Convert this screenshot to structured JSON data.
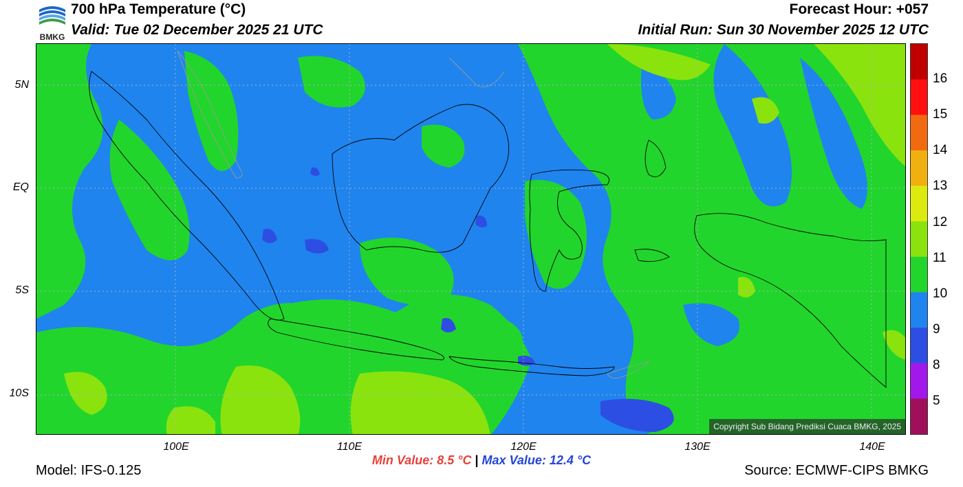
{
  "header": {
    "logo_text": "BMKG",
    "title": "700 hPa Temperature (°C)",
    "valid": "Valid: Tue 02 December 2025 21 UTC",
    "forecast_hour": "Forecast Hour: +057",
    "initial_run": "Initial Run: Sun 30 November 2025 12 UTC"
  },
  "map": {
    "copyright": "Copyright Sub Bidang Prediksi Cuaca BMKG, 2025",
    "lat_labels": [
      "5N",
      "EQ",
      "5S",
      "10S"
    ],
    "lon_labels": [
      "100E",
      "110E",
      "120E",
      "130E",
      "140E"
    ],
    "extent": {
      "lon_min": 92,
      "lon_max": 142,
      "lat_min": -12.0,
      "lat_max": 7.2
    },
    "field_colors": {
      "blue_9_10": "#1f84ee",
      "green_10_11": "#22d52c",
      "yellowgreen_11_12": "#8be30e",
      "darkblue_8_9": "#2d4ee2",
      "gridline": "#aab4c8",
      "coastline": "#000000"
    }
  },
  "colorbar": {
    "labels": [
      "16",
      "15",
      "14",
      "13",
      "12",
      "11",
      "10",
      "9",
      "8",
      "5"
    ],
    "segments": [
      "#c00000",
      "#ff1010",
      "#f06a10",
      "#f0b010",
      "#dcea10",
      "#8be30e",
      "#22d52c",
      "#1f84ee",
      "#2d4ee2",
      "#a218ea",
      "#a0105a"
    ]
  },
  "footer": {
    "min_value": "Min Value: 8.5 °C",
    "separator": "|",
    "max_value": "Max Value: 12.4 °C",
    "model": "Model: IFS-0.125",
    "source": "Source: ECMWF-CIPS BMKG"
  }
}
